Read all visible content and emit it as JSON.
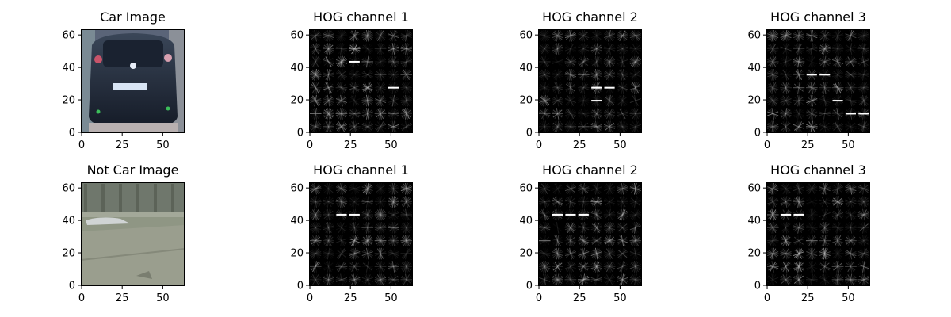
{
  "figure": {
    "panels": [
      {
        "title": "Car Image",
        "kind": "car"
      },
      {
        "title": "HOG channel 1",
        "kind": "hog",
        "seed": 11,
        "bright": [
          [
            2,
            3
          ],
          [
            4,
            6
          ]
        ]
      },
      {
        "title": "HOG channel 2",
        "kind": "hog",
        "seed": 23,
        "bright": [
          [
            4,
            4
          ],
          [
            4,
            5
          ],
          [
            5,
            4
          ]
        ]
      },
      {
        "title": "HOG channel 3",
        "kind": "hog",
        "seed": 37,
        "bright": [
          [
            3,
            3
          ],
          [
            3,
            4
          ],
          [
            6,
            7
          ],
          [
            6,
            6
          ],
          [
            5,
            5
          ]
        ]
      },
      {
        "title": "Not Car Image",
        "kind": "road"
      },
      {
        "title": "HOG channel 1",
        "kind": "hog",
        "seed": 41,
        "bright": [
          [
            2,
            2
          ],
          [
            2,
            3
          ]
        ]
      },
      {
        "title": "HOG channel 2",
        "kind": "hog",
        "seed": 53,
        "bright": [
          [
            2,
            1
          ],
          [
            2,
            2
          ],
          [
            2,
            3
          ]
        ]
      },
      {
        "title": "HOG channel 3",
        "kind": "hog",
        "seed": 67,
        "bright": [
          [
            2,
            1
          ],
          [
            2,
            2
          ]
        ]
      }
    ],
    "x_ticks": [
      0,
      25,
      50
    ],
    "y_ticks": [
      0,
      20,
      40,
      60
    ],
    "xlim": [
      -0.5,
      63.5
    ],
    "ylim": [
      63.5,
      -0.5
    ]
  }
}
